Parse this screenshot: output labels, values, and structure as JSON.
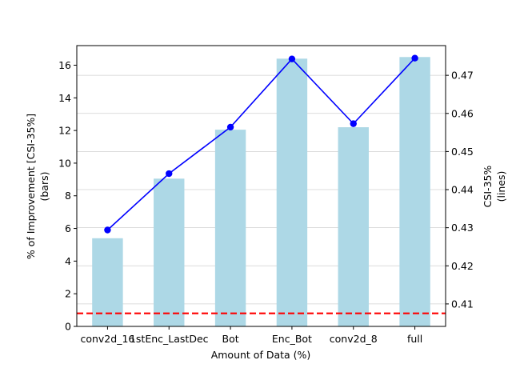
{
  "chart_data": {
    "type": "bar",
    "categories": [
      "conv2d_16",
      "1stEnc_LastDec",
      "Bot",
      "Enc_Bot",
      "conv2d_8",
      "full"
    ],
    "xlabel": "Amount of Data (%)",
    "bars": {
      "ylabel_line1": "% of Improvement [CSI-35%]",
      "ylabel_line2": "(bars)",
      "values": [
        5.4,
        9.05,
        12.05,
        16.4,
        12.2,
        16.5
      ],
      "ylim": [
        0,
        17.2
      ],
      "yticks": [
        0,
        2,
        4,
        6,
        8,
        10,
        12,
        14,
        16
      ],
      "color": "#add8e6"
    },
    "line": {
      "ylabel_line1": "CSI-35%",
      "ylabel_line2": "(lines)",
      "values": [
        0.4294,
        0.4442,
        0.4564,
        0.4743,
        0.4573,
        0.4745
      ],
      "ylim": [
        0.4041,
        0.4778
      ],
      "yticks": [
        0.41,
        0.42,
        0.43,
        0.44,
        0.45,
        0.46,
        0.47
      ],
      "ytick_labels": [
        "0.41",
        "0.42",
        "0.43",
        "0.44",
        "0.45",
        "0.46",
        "0.47"
      ],
      "color": "#0000ff"
    },
    "baseline": {
      "value": 0.8,
      "color": "#ff0000",
      "style": "dashed"
    },
    "grid": true
  }
}
